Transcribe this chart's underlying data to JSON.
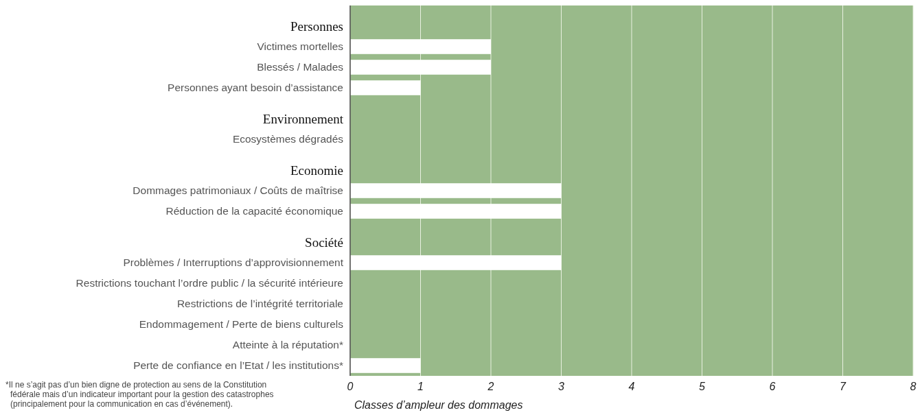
{
  "chart_data": {
    "type": "bar",
    "orientation": "horizontal",
    "xlabel": "Classes d’ampleur des dommages",
    "categories": [
      "Personnes",
      "Victimes mortelles",
      "Blessés / Malades",
      "Personnes ayant besoin d’assistance",
      "Environnement",
      "Ecosystèmes dégradés",
      "Economie",
      "Dommages patrimoniaux / Coûts de maîtrise",
      "Réduction de la capacité économique",
      "Société",
      "Problèmes / Interruptions d’approvisionnement",
      "Restrictions touchant l’ordre public / la sécurité intérieure",
      "Restrictions de l’intégrité territoriale",
      "Endommagement / Perte de biens culturels",
      "Atteinte à la réputation*",
      "Perte de confiance en l’Etat / les institutions*"
    ],
    "values": [
      null,
      2,
      2,
      1,
      null,
      0,
      null,
      3,
      3,
      null,
      3,
      0,
      0,
      0,
      0,
      1
    ],
    "color": "#ffffff",
    "xlim": [
      0,
      8
    ],
    "xticks": [
      0,
      1,
      2,
      3,
      4,
      5,
      6,
      7,
      8
    ],
    "grid": "x",
    "annotations": [
      "*Il ne s’agit pas d’un bien digne de protection au sens de la Constitution\nfédérale mais d’un indicateur important pour la gestion des catastrophes\n(principalement pour la communication en cas d’événement)."
    ]
  }
}
